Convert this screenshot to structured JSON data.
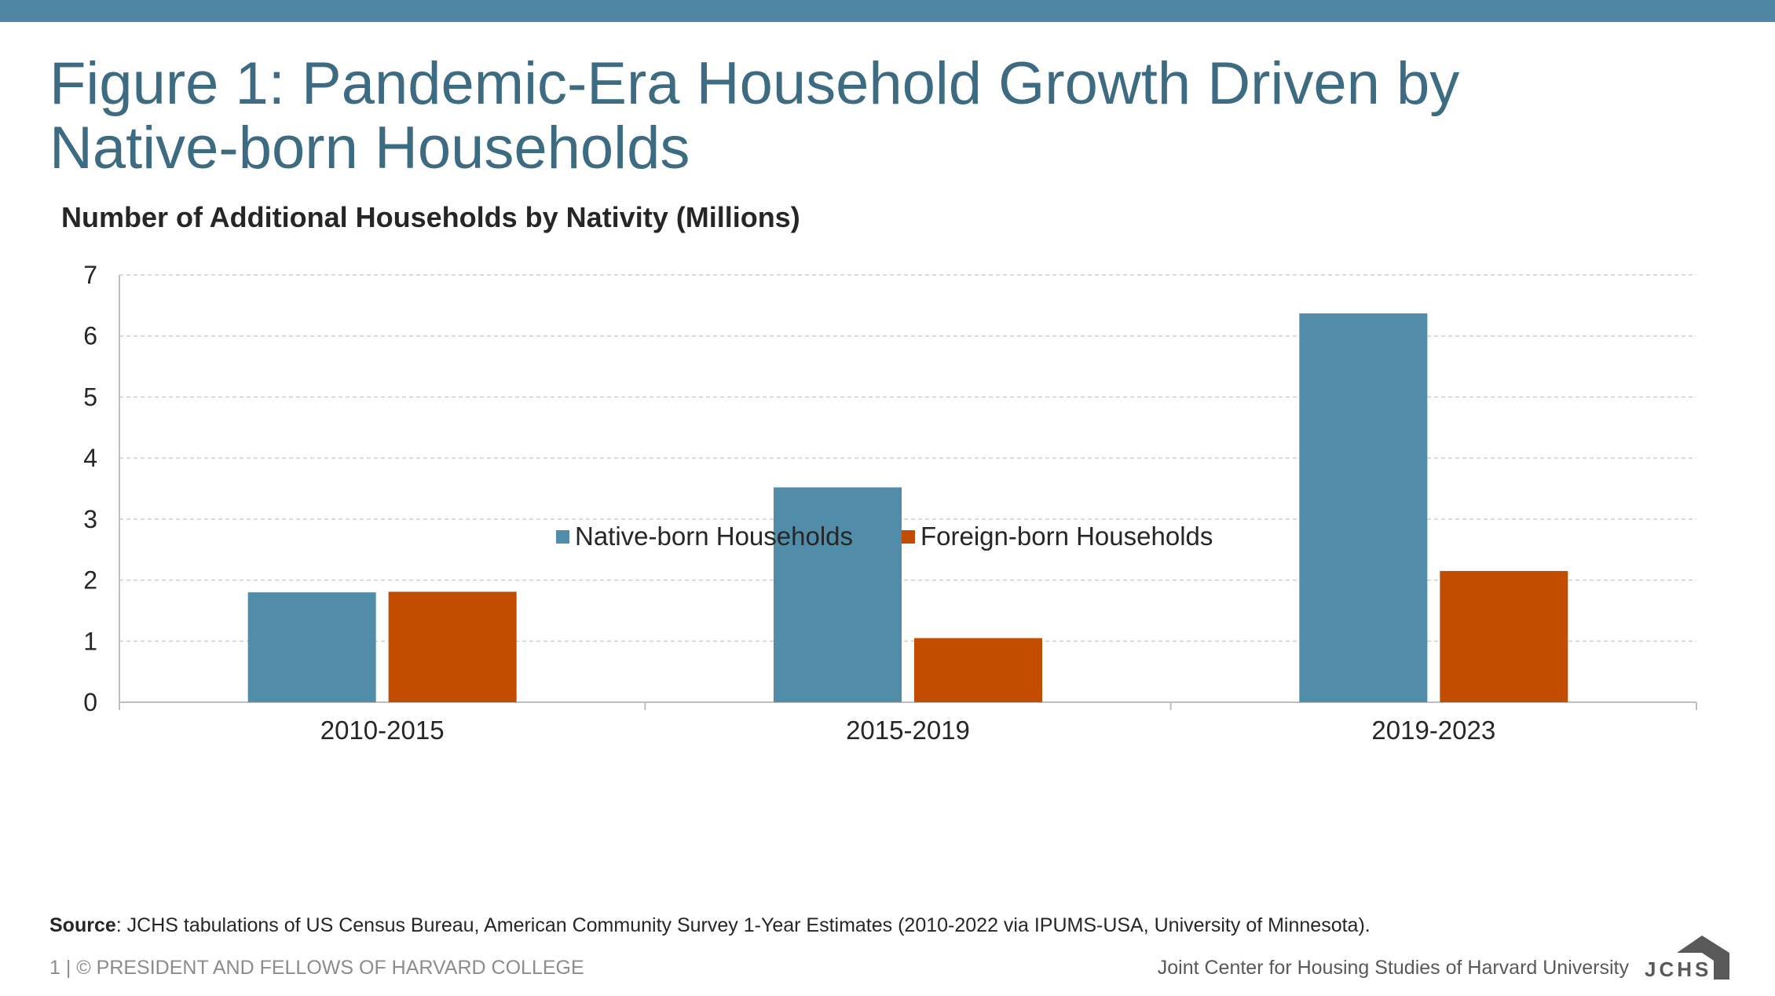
{
  "header": {
    "title": "Figure 1: Pandemic-Era Household Growth Driven by Native-born Households",
    "bar_color": "#4f86a4"
  },
  "chart_data": {
    "type": "bar",
    "title": "Number of Additional Households by Nativity (Millions)",
    "xlabel": "",
    "ylabel": "",
    "categories": [
      "2010-2015",
      "2015-2019",
      "2019-2023"
    ],
    "series": [
      {
        "name": "Native-born Households",
        "values": [
          1.8,
          3.52,
          6.37
        ],
        "color": "#518da9"
      },
      {
        "name": "Foreign-born Households",
        "values": [
          1.81,
          1.05,
          2.15
        ],
        "color": "#c24c00"
      }
    ],
    "ylim": [
      0,
      7
    ],
    "yticks": [
      "0",
      "1",
      "2",
      "3",
      "4",
      "5",
      "6",
      "7"
    ],
    "grid": true,
    "legend": "bottom-center"
  },
  "footer": {
    "source_label": "Source",
    "source_text": ": JCHS tabulations of US Census Bureau, American Community Survey 1-Year Estimates (2010-2022 via IPUMS-USA, University of Minnesota).",
    "copyright": "1 | © PRESIDENT AND FELLOWS OF HARVARD COLLEGE",
    "organization": "Joint Center for Housing Studies of Harvard University",
    "logo_text": "JCHS",
    "logo_color": "#595959"
  }
}
